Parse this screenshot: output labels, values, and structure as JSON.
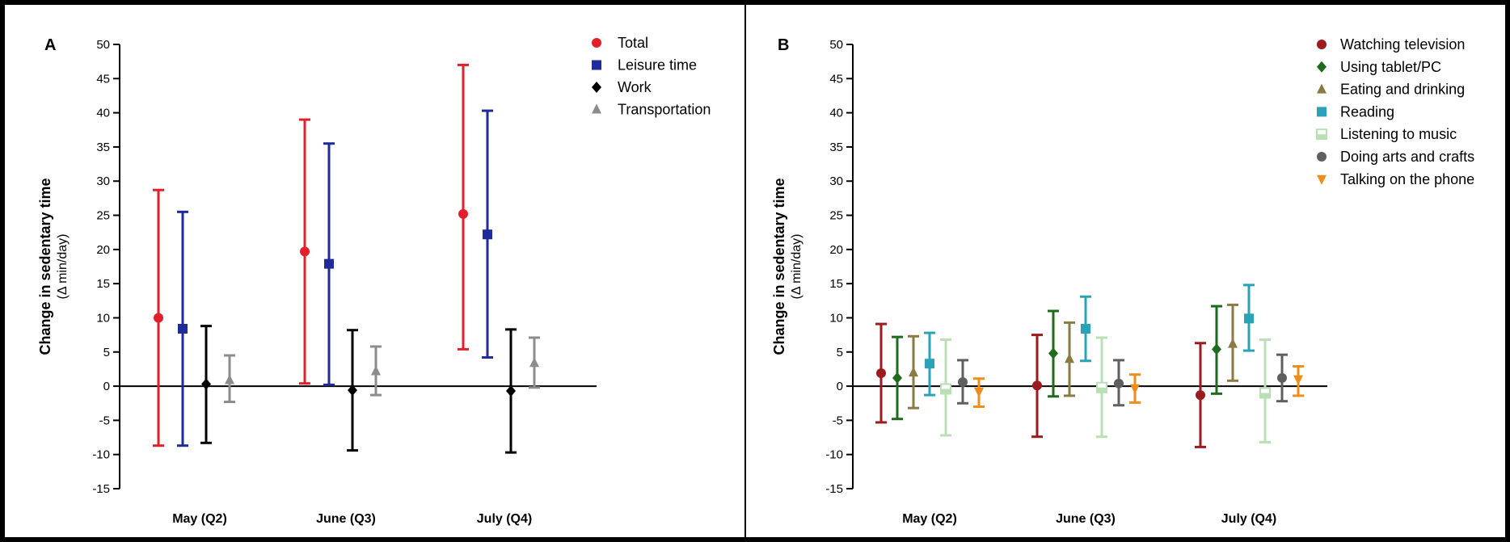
{
  "chart_data": [
    {
      "type": "errorbar",
      "panel_label": "A",
      "ylabel": "Change in sedentary time",
      "ylabel_sub": "(Δ min/day)",
      "ylim": [
        -15,
        50
      ],
      "yticks": [
        -15,
        -10,
        -5,
        0,
        5,
        10,
        15,
        20,
        25,
        30,
        35,
        40,
        45,
        50
      ],
      "categories": [
        "May (Q2)",
        "June (Q3)",
        "July (Q4)"
      ],
      "legend_position": "top-right",
      "series": [
        {
          "name": "Total",
          "color": "#e3202a",
          "marker": "circle",
          "values": [
            10.0,
            19.7,
            25.2
          ],
          "lower": [
            -8.7,
            0.4,
            5.4
          ],
          "upper": [
            28.7,
            39.0,
            47.0
          ]
        },
        {
          "name": "Leisure time",
          "color": "#1f2a9b",
          "marker": "square",
          "values": [
            8.4,
            17.9,
            22.2
          ],
          "lower": [
            -8.7,
            0.2,
            4.2
          ],
          "upper": [
            25.5,
            35.5,
            40.3
          ]
        },
        {
          "name": "Work",
          "color": "#000000",
          "marker": "diamond",
          "values": [
            0.3,
            -0.6,
            -0.7
          ],
          "lower": [
            -8.3,
            -9.4,
            -9.7
          ],
          "upper": [
            8.8,
            8.2,
            8.3
          ]
        },
        {
          "name": "Transportation",
          "color": "#8c8c8c",
          "marker": "triangle",
          "values": [
            0.9,
            2.2,
            3.4
          ],
          "lower": [
            -2.3,
            -1.3,
            -0.2
          ],
          "upper": [
            4.5,
            5.8,
            7.1
          ]
        }
      ]
    },
    {
      "type": "errorbar",
      "panel_label": "B",
      "ylabel": "Change in sedentary time",
      "ylabel_sub": "(Δ min/day)",
      "ylim": [
        -15,
        50
      ],
      "yticks": [
        -15,
        -10,
        -5,
        0,
        5,
        10,
        15,
        20,
        25,
        30,
        35,
        40,
        45,
        50
      ],
      "categories": [
        "May (Q2)",
        "June (Q3)",
        "July (Q4)"
      ],
      "legend_position": "top-right",
      "series": [
        {
          "name": "Watching television",
          "color": "#9b1b1e",
          "marker": "circle",
          "values": [
            1.9,
            0.1,
            -1.3
          ],
          "lower": [
            -5.3,
            -7.4,
            -8.9
          ],
          "upper": [
            9.1,
            7.5,
            6.3
          ]
        },
        {
          "name": "Using tablet/PC",
          "color": "#1e6b1e",
          "marker": "diamond",
          "values": [
            1.2,
            4.8,
            5.4
          ],
          "lower": [
            -4.8,
            -1.5,
            -1.1
          ],
          "upper": [
            7.2,
            11.0,
            11.7
          ]
        },
        {
          "name": "Eating and drinking",
          "color": "#8c7a45",
          "marker": "triangle",
          "values": [
            2.0,
            4.0,
            6.2
          ],
          "lower": [
            -3.2,
            -1.4,
            0.8
          ],
          "upper": [
            7.3,
            9.3,
            11.9
          ]
        },
        {
          "name": "Reading",
          "color": "#2aa3b8",
          "marker": "square",
          "values": [
            3.3,
            8.4,
            9.9
          ],
          "lower": [
            -1.3,
            3.7,
            5.2
          ],
          "upper": [
            7.8,
            13.1,
            14.8
          ]
        },
        {
          "name": "Listening to music",
          "color": "#b9e0b5",
          "marker": "half-square",
          "values": [
            -0.4,
            -0.2,
            -1.0
          ],
          "lower": [
            -7.2,
            -7.4,
            -8.2
          ],
          "upper": [
            6.8,
            7.1,
            6.8
          ]
        },
        {
          "name": "Doing arts and crafts",
          "color": "#5f5f5f",
          "marker": "circle",
          "values": [
            0.6,
            0.4,
            1.2
          ],
          "lower": [
            -2.5,
            -2.8,
            -2.2
          ],
          "upper": [
            3.8,
            3.8,
            4.6
          ]
        },
        {
          "name": "Talking on the phone",
          "color": "#f08c1a",
          "marker": "triangle-down",
          "values": [
            -0.8,
            -0.3,
            1.0
          ],
          "lower": [
            -3.0,
            -2.4,
            -1.4
          ],
          "upper": [
            1.1,
            1.7,
            2.9
          ]
        }
      ]
    }
  ]
}
